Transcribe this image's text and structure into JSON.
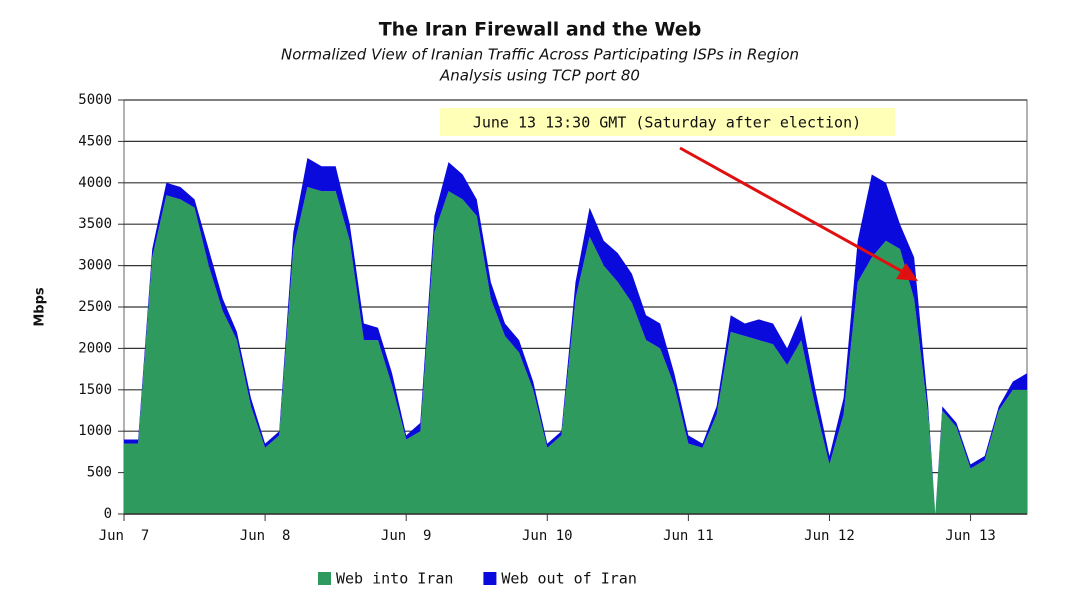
{
  "chart_data": {
    "type": "stacked-area",
    "title": "The Iran Firewall and the Web",
    "subtitle": [
      "Normalized View of Iranian Traffic Across Participating ISPs in Region",
      "Analysis using TCP port 80"
    ],
    "y_label": "Mbps",
    "annotation": "June 13 13:30 GMT (Saturday after election)",
    "x": [
      0,
      0.1,
      0.2,
      0.3,
      0.4,
      0.5,
      0.6,
      0.7,
      0.8,
      0.9,
      1,
      1.1,
      1.2,
      1.3,
      1.4,
      1.5,
      1.6,
      1.7,
      1.8,
      1.9,
      2,
      2.1,
      2.2,
      2.3,
      2.4,
      2.5,
      2.6,
      2.7,
      2.8,
      2.9,
      3,
      3.1,
      3.2,
      3.3,
      3.4,
      3.5,
      3.6,
      3.7,
      3.8,
      3.9,
      4,
      4.1,
      4.2,
      4.3,
      4.4,
      4.5,
      4.6,
      4.7,
      4.8,
      4.9,
      5,
      5.1,
      5.2,
      5.3,
      5.4,
      5.5,
      5.6,
      5.7,
      5.75,
      5.8,
      5.9,
      6,
      6.1,
      6.2,
      6.3,
      6.4
    ],
    "series": [
      {
        "name": "Web into Iran",
        "color": "#2e9a5e",
        "values": [
          850,
          850,
          3100,
          3850,
          3800,
          3700,
          3000,
          2450,
          2100,
          1300,
          800,
          950,
          3200,
          3950,
          3900,
          3900,
          3300,
          2100,
          2100,
          1550,
          900,
          1000,
          3400,
          3900,
          3800,
          3600,
          2600,
          2150,
          1950,
          1500,
          800,
          950,
          2600,
          3350,
          3000,
          2800,
          2550,
          2100,
          2000,
          1550,
          850,
          800,
          1200,
          2200,
          2150,
          2100,
          2050,
          1800,
          2100,
          1300,
          600,
          1200,
          2800,
          3100,
          3300,
          3200,
          2600,
          1200,
          0,
          1250,
          1050,
          550,
          650,
          1250,
          1500,
          1500
        ]
      },
      {
        "name": "Web out of Iran",
        "color": "#0a0adc",
        "values": [
          50,
          50,
          100,
          150,
          150,
          100,
          200,
          150,
          100,
          100,
          50,
          50,
          200,
          350,
          300,
          300,
          200,
          200,
          150,
          150,
          50,
          100,
          200,
          350,
          300,
          200,
          200,
          150,
          150,
          100,
          50,
          50,
          200,
          350,
          300,
          350,
          350,
          300,
          300,
          150,
          100,
          50,
          100,
          200,
          150,
          250,
          250,
          200,
          300,
          200,
          100,
          200,
          500,
          1000,
          700,
          300,
          500,
          100,
          0,
          50,
          50,
          50,
          50,
          50,
          100,
          200
        ]
      }
    ],
    "xlim": [
      0,
      6.4
    ],
    "xticks": [
      {
        "value": 0,
        "label": "Jun  7"
      },
      {
        "value": 1,
        "label": "Jun  8"
      },
      {
        "value": 2,
        "label": "Jun  9"
      },
      {
        "value": 3,
        "label": "Jun 10"
      },
      {
        "value": 4,
        "label": "Jun 11"
      },
      {
        "value": 5,
        "label": "Jun 12"
      },
      {
        "value": 6,
        "label": "Jun 13"
      }
    ],
    "ylim": [
      0,
      5000
    ],
    "yticks": [
      0,
      500,
      1000,
      1500,
      2000,
      2500,
      3000,
      3500,
      4000,
      4500,
      5000
    ],
    "grid": true
  }
}
